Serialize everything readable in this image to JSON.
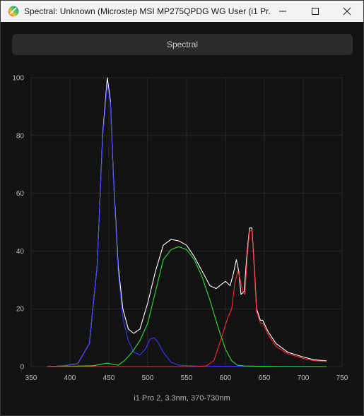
{
  "window": {
    "title": "Spectral: Unknown (Microstep MSI MP275QPDG WG User (i1 Pr...",
    "icons": {
      "app": "displaycal-spectrum-icon",
      "minimize": "minimize-icon",
      "maximize": "maximize-icon",
      "close": "close-icon"
    }
  },
  "header": {
    "label": "Spectral"
  },
  "footer": {
    "label": "i1 Pro 2, 3.3nm, 370-730nm"
  },
  "chart_data": {
    "type": "line",
    "title": "",
    "xlabel": "",
    "ylabel": "",
    "xlim": [
      350,
      750
    ],
    "ylim": [
      0,
      100
    ],
    "x_ticks": [
      350,
      400,
      450,
      500,
      550,
      600,
      650,
      700,
      750
    ],
    "y_ticks": [
      0,
      20,
      40,
      60,
      80,
      100
    ],
    "grid": true,
    "series": [
      {
        "color": "#ffffff",
        "points": [
          [
            370,
            0
          ],
          [
            390,
            0.2
          ],
          [
            410,
            1
          ],
          [
            425,
            8
          ],
          [
            435,
            35
          ],
          [
            442,
            80
          ],
          [
            448,
            100
          ],
          [
            452,
            92
          ],
          [
            456,
            65
          ],
          [
            462,
            35
          ],
          [
            468,
            20
          ],
          [
            475,
            13
          ],
          [
            482,
            11.5
          ],
          [
            490,
            13
          ],
          [
            500,
            22
          ],
          [
            510,
            33
          ],
          [
            520,
            42
          ],
          [
            530,
            44
          ],
          [
            540,
            43.5
          ],
          [
            550,
            42
          ],
          [
            560,
            38
          ],
          [
            570,
            33
          ],
          [
            580,
            28
          ],
          [
            588,
            27
          ],
          [
            595,
            28.5
          ],
          [
            600,
            29.5
          ],
          [
            606,
            28
          ],
          [
            610,
            32
          ],
          [
            614,
            37
          ],
          [
            617,
            33
          ],
          [
            620,
            25
          ],
          [
            624,
            26
          ],
          [
            628,
            40
          ],
          [
            631,
            48
          ],
          [
            634,
            48
          ],
          [
            637,
            35
          ],
          [
            640,
            20
          ],
          [
            645,
            16
          ],
          [
            648,
            16
          ],
          [
            655,
            12
          ],
          [
            665,
            8
          ],
          [
            680,
            5
          ],
          [
            700,
            3.3
          ],
          [
            715,
            2.3
          ],
          [
            730,
            2
          ]
        ]
      },
      {
        "color": "#3a3aff",
        "points": [
          [
            370,
            0
          ],
          [
            390,
            0.2
          ],
          [
            410,
            1
          ],
          [
            425,
            8
          ],
          [
            435,
            35
          ],
          [
            442,
            79
          ],
          [
            448,
            98
          ],
          [
            452,
            91
          ],
          [
            456,
            64
          ],
          [
            462,
            33
          ],
          [
            468,
            17
          ],
          [
            475,
            9
          ],
          [
            482,
            5
          ],
          [
            490,
            4
          ],
          [
            497,
            6
          ],
          [
            503,
            9.5
          ],
          [
            508,
            10
          ],
          [
            513,
            8.5
          ],
          [
            520,
            5
          ],
          [
            530,
            1.5
          ],
          [
            540,
            0.5
          ],
          [
            560,
            0.2
          ],
          [
            600,
            0.1
          ],
          [
            650,
            0.1
          ],
          [
            730,
            0
          ]
        ]
      },
      {
        "color": "#2ee02e",
        "points": [
          [
            370,
            0
          ],
          [
            430,
            0.3
          ],
          [
            440,
            0.8
          ],
          [
            448,
            1.2
          ],
          [
            455,
            0.8
          ],
          [
            462,
            0.5
          ],
          [
            470,
            2
          ],
          [
            480,
            5
          ],
          [
            490,
            9
          ],
          [
            500,
            15
          ],
          [
            510,
            26
          ],
          [
            520,
            37
          ],
          [
            530,
            40.5
          ],
          [
            540,
            41.5
          ],
          [
            550,
            40.5
          ],
          [
            560,
            37
          ],
          [
            570,
            31
          ],
          [
            580,
            23
          ],
          [
            590,
            14
          ],
          [
            600,
            6
          ],
          [
            608,
            2
          ],
          [
            615,
            0.5
          ],
          [
            625,
            0.2
          ],
          [
            650,
            0.1
          ],
          [
            730,
            0
          ]
        ]
      },
      {
        "color": "#ff2a2a",
        "points": [
          [
            370,
            0
          ],
          [
            560,
            0
          ],
          [
            575,
            0.2
          ],
          [
            585,
            2
          ],
          [
            595,
            10
          ],
          [
            603,
            17
          ],
          [
            608,
            20
          ],
          [
            612,
            29
          ],
          [
            616,
            33
          ],
          [
            619,
            30
          ],
          [
            622,
            26
          ],
          [
            625,
            25
          ],
          [
            628,
            38
          ],
          [
            631,
            47
          ],
          [
            634,
            47
          ],
          [
            637,
            34
          ],
          [
            640,
            19
          ],
          [
            645,
            15
          ],
          [
            648,
            15
          ],
          [
            655,
            11
          ],
          [
            665,
            7
          ],
          [
            680,
            4.5
          ],
          [
            700,
            2.8
          ],
          [
            715,
            2
          ],
          [
            730,
            1.8
          ]
        ]
      }
    ]
  }
}
